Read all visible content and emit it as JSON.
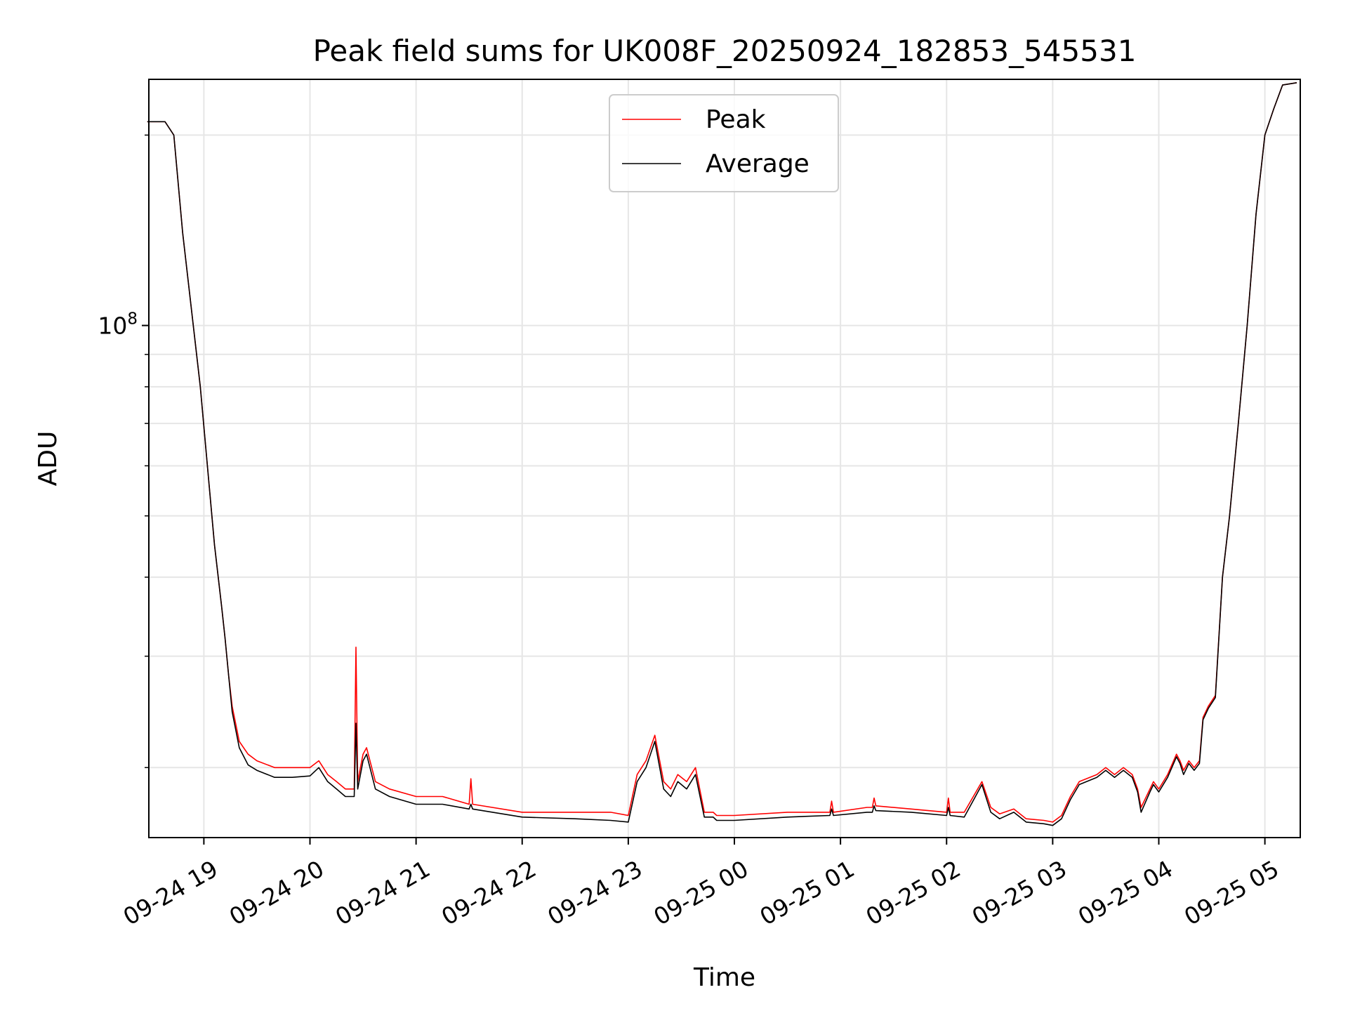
{
  "chart_data": {
    "type": "line",
    "title": "Peak field sums for UK008F_20250924_182853_545531",
    "xlabel": "Time",
    "ylabel": "ADU",
    "y_scale": "log",
    "ylim": [
      15500000,
      245000000
    ],
    "xlim": [
      "2025-09-24 18:28:53",
      "2025-09-25 05:20:00"
    ],
    "grid": true,
    "legend_position": "upper center",
    "x_ticks": [
      "09-24 19",
      "09-24 20",
      "09-24 21",
      "09-24 22",
      "09-24 23",
      "09-25 00",
      "09-25 01",
      "09-25 02",
      "09-25 03",
      "09-25 04",
      "09-25 05"
    ],
    "x_tick_values": [
      "2025-09-24 19:00",
      "2025-09-24 20:00",
      "2025-09-24 21:00",
      "2025-09-24 22:00",
      "2025-09-24 23:00",
      "2025-09-25 00:00",
      "2025-09-25 01:00",
      "2025-09-25 02:00",
      "2025-09-25 03:00",
      "2025-09-25 04:00",
      "2025-09-25 05:00"
    ],
    "y_major_tick": {
      "value": 100000000,
      "base": "10",
      "exponent": "8"
    },
    "y_minor_ticks": [
      20000000,
      30000000,
      40000000,
      50000000,
      60000000,
      70000000,
      80000000,
      90000000,
      200000000
    ],
    "x": [
      "2025-09-24 18:28",
      "2025-09-24 18:38",
      "2025-09-24 18:39",
      "2025-09-24 18:43",
      "2025-09-24 18:48",
      "2025-09-24 18:54",
      "2025-09-24 18:58",
      "2025-09-24 19:02",
      "2025-09-24 19:06",
      "2025-09-24 19:10",
      "2025-09-24 19:12",
      "2025-09-24 19:14",
      "2025-09-24 19:16",
      "2025-09-24 19:20",
      "2025-09-24 19:25",
      "2025-09-24 19:30",
      "2025-09-24 19:40",
      "2025-09-24 19:50",
      "2025-09-24 20:00",
      "2025-09-24 20:05",
      "2025-09-24 20:10",
      "2025-09-24 20:15",
      "2025-09-24 20:20",
      "2025-09-24 20:25",
      "2025-09-24 20:26",
      "2025-09-24 20:27",
      "2025-09-24 20:30",
      "2025-09-24 20:32",
      "2025-09-24 20:37",
      "2025-09-24 20:45",
      "2025-09-24 21:00",
      "2025-09-24 21:15",
      "2025-09-24 21:30",
      "2025-09-24 21:31",
      "2025-09-24 21:32",
      "2025-09-24 22:00",
      "2025-09-24 22:30",
      "2025-09-24 22:50",
      "2025-09-24 23:00",
      "2025-09-24 23:05",
      "2025-09-24 23:10",
      "2025-09-24 23:15",
      "2025-09-24 23:20",
      "2025-09-24 23:24",
      "2025-09-24 23:28",
      "2025-09-24 23:33",
      "2025-09-24 23:38",
      "2025-09-24 23:43",
      "2025-09-24 23:48",
      "2025-09-24 23:50",
      "2025-09-24 23:52",
      "2025-09-24 23:55",
      "2025-09-25 00:00",
      "2025-09-25 00:30",
      "2025-09-25 00:54",
      "2025-09-25 00:55",
      "2025-09-25 00:56",
      "2025-09-25 01:15",
      "2025-09-25 01:18",
      "2025-09-25 01:19",
      "2025-09-25 01:20",
      "2025-09-25 01:40",
      "2025-09-25 02:00",
      "2025-09-25 02:01",
      "2025-09-25 02:02",
      "2025-09-25 02:10",
      "2025-09-25 02:20",
      "2025-09-25 02:25",
      "2025-09-25 02:30",
      "2025-09-25 02:38",
      "2025-09-25 02:45",
      "2025-09-25 02:55",
      "2025-09-25 03:00",
      "2025-09-25 03:05",
      "2025-09-25 03:10",
      "2025-09-25 03:15",
      "2025-09-25 03:25",
      "2025-09-25 03:30",
      "2025-09-25 03:35",
      "2025-09-25 03:40",
      "2025-09-25 03:45",
      "2025-09-25 03:48",
      "2025-09-25 03:50",
      "2025-09-25 03:55",
      "2025-09-25 03:57",
      "2025-09-25 04:00",
      "2025-09-25 04:05",
      "2025-09-25 04:10",
      "2025-09-25 04:12",
      "2025-09-25 04:14",
      "2025-09-25 04:17",
      "2025-09-25 04:20",
      "2025-09-25 04:23",
      "2025-09-25 04:25",
      "2025-09-25 04:28",
      "2025-09-25 04:32",
      "2025-09-25 04:36",
      "2025-09-25 04:40",
      "2025-09-25 04:45",
      "2025-09-25 04:50",
      "2025-09-25 04:55",
      "2025-09-25 05:00",
      "2025-09-25 05:05",
      "2025-09-25 05:10",
      "2025-09-25 05:18"
    ],
    "series": [
      {
        "name": "Peak",
        "color": "#ff0000",
        "values": [
          210000000,
          210000000,
          208000000,
          200000000,
          140000000,
          100000000,
          80000000,
          60000000,
          45000000,
          36000000,
          32000000,
          28000000,
          25000000,
          22000000,
          21000000,
          20500000,
          20000000,
          20000000,
          20000000,
          20500000,
          19500000,
          19000000,
          18500000,
          18500000,
          31000000,
          19000000,
          21000000,
          21500000,
          19000000,
          18500000,
          18000000,
          18000000,
          17500000,
          19200000,
          17500000,
          17000000,
          17000000,
          17000000,
          16800000,
          19500000,
          20500000,
          22500000,
          19000000,
          18500000,
          19500000,
          19000000,
          20000000,
          17000000,
          17000000,
          16800000,
          16800000,
          16800000,
          16800000,
          17000000,
          17000000,
          17700000,
          17000000,
          17300000,
          17300000,
          17900000,
          17400000,
          17200000,
          17000000,
          17900000,
          17000000,
          17000000,
          19000000,
          17300000,
          16900000,
          17200000,
          16600000,
          16500000,
          16400000,
          16800000,
          18000000,
          19000000,
          19500000,
          20000000,
          19500000,
          20000000,
          19500000,
          18500000,
          17300000,
          18500000,
          19000000,
          18500000,
          19500000,
          21000000,
          20500000,
          19800000,
          20500000,
          20000000,
          20500000,
          24000000,
          25000000,
          26000000,
          40000000,
          50000000,
          70000000,
          100000000,
          150000000,
          200000000,
          220000000,
          240000000,
          242000000
        ]
      },
      {
        "name": "Average",
        "color": "#000000",
        "values": [
          210000000,
          210000000,
          208000000,
          200000000,
          140000000,
          100000000,
          80000000,
          60000000,
          45000000,
          36000000,
          32000000,
          28000000,
          24500000,
          21500000,
          20200000,
          19800000,
          19300000,
          19300000,
          19400000,
          20000000,
          19000000,
          18500000,
          18000000,
          18000000,
          23500000,
          18500000,
          20500000,
          21000000,
          18500000,
          18000000,
          17500000,
          17500000,
          17200000,
          17500000,
          17200000,
          16700000,
          16600000,
          16500000,
          16400000,
          19000000,
          20000000,
          22000000,
          18500000,
          18000000,
          19000000,
          18500000,
          19500000,
          16700000,
          16700000,
          16500000,
          16500000,
          16500000,
          16500000,
          16700000,
          16800000,
          17200000,
          16800000,
          17000000,
          17000000,
          17400000,
          17100000,
          17000000,
          16800000,
          17300000,
          16800000,
          16700000,
          18800000,
          17000000,
          16600000,
          17000000,
          16400000,
          16300000,
          16200000,
          16600000,
          17800000,
          18800000,
          19300000,
          19800000,
          19300000,
          19800000,
          19300000,
          18300000,
          17000000,
          18300000,
          18800000,
          18300000,
          19300000,
          20800000,
          20300000,
          19500000,
          20300000,
          19800000,
          20300000,
          23800000,
          24800000,
          25800000,
          40000000,
          50000000,
          70000000,
          100000000,
          150000000,
          200000000,
          220000000,
          240000000,
          242000000
        ]
      }
    ]
  }
}
